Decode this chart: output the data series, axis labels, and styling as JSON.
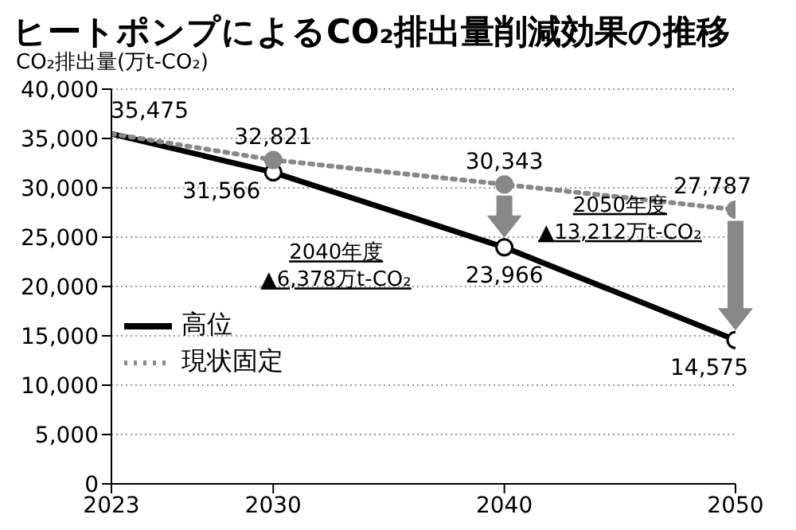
{
  "chart_data": {
    "type": "line",
    "title": "ヒートポンプによるCO₂排出量削減効果の推移",
    "ylabel": "CO₂排出量(万t-CO₂)",
    "x": [
      2023,
      2030,
      2040,
      2050
    ],
    "series": [
      {
        "name": "高位",
        "color": "#000000",
        "values": [
          35475,
          31566,
          23966,
          14575
        ],
        "line_style": "solid",
        "value_labels": [
          null,
          "31,566",
          "23,966",
          "14,575"
        ]
      },
      {
        "name": "現状固定",
        "color": "#888888",
        "values": [
          35475,
          32821,
          30343,
          27787
        ],
        "line_style": "dotted",
        "value_labels": [
          "35,475",
          "32,821",
          "30,343",
          "27,787"
        ]
      }
    ],
    "xlim": [
      2023,
      2050
    ],
    "xticks": [
      2023,
      2030,
      2040,
      2050
    ],
    "ylim": [
      0,
      40000
    ],
    "yticks": [
      0,
      {
        "value": 5000,
        "label": "5,000"
      },
      {
        "value": 10000,
        "label": "10,000"
      },
      {
        "value": 15000,
        "label": "15,000"
      },
      {
        "value": 20000,
        "label": "20,000"
      },
      {
        "value": 25000,
        "label": "25,000"
      },
      {
        "value": 30000,
        "label": "30,000"
      },
      {
        "value": 35000,
        "label": "35,000"
      },
      {
        "value": 40000,
        "label": "40,000"
      }
    ],
    "grid": "y",
    "legend": "left",
    "marker": "circle",
    "annotations": [
      "2040年度\n▲6,378万t-CO₂",
      "2050年度\n▲13,212万t-CO₂"
    ]
  }
}
